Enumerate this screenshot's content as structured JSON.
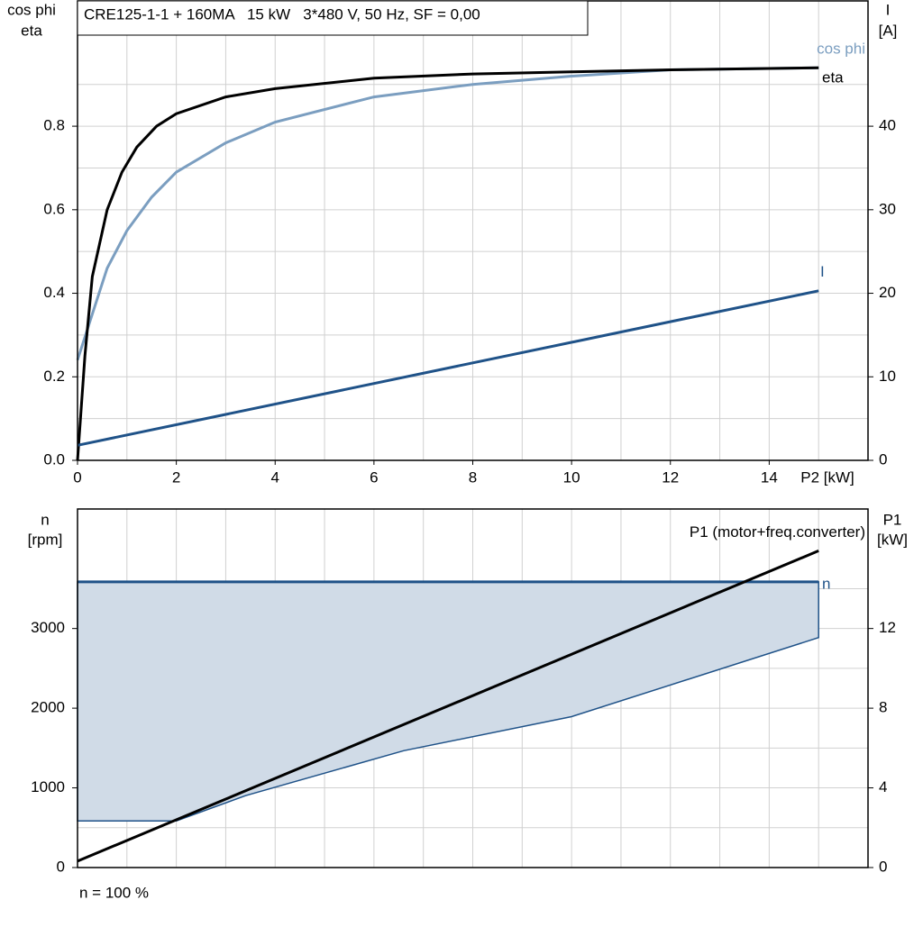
{
  "chart_data": [
    {
      "type": "line",
      "title": "CRE125-1-1 + 160MA   15 kW   3*480 V, 50 Hz, SF = 0,00",
      "ylabel": [
        "cos phi",
        "eta"
      ],
      "y2label": [
        "I",
        "[A]"
      ],
      "xlabel": "P2 [kW]",
      "xlim": [
        0,
        16
      ],
      "xticks": [
        0,
        2,
        4,
        6,
        8,
        10,
        12,
        14
      ],
      "ylim": [
        0,
        1.1
      ],
      "yticks": [
        {
          "value": 0,
          "label": "0.0"
        },
        0.2,
        0.4,
        0.6,
        0.8
      ],
      "y2lim": [
        0,
        55
      ],
      "y2ticks": [
        0,
        10,
        20,
        30,
        40
      ],
      "grid": true,
      "series": [
        {
          "name": "cos phi",
          "type": "line",
          "color": "#7b9ec0",
          "x": [
            0,
            0.3,
            0.6,
            1,
            1.5,
            2,
            3,
            4,
            6,
            8,
            10,
            12,
            15
          ],
          "values": [
            0.24,
            0.35,
            0.46,
            0.55,
            0.63,
            0.69,
            0.76,
            0.81,
            0.87,
            0.9,
            0.92,
            0.935,
            0.94
          ]
        },
        {
          "name": "eta",
          "type": "line",
          "color": "#000000",
          "x": [
            0,
            0.15,
            0.3,
            0.6,
            0.9,
            1.2,
            1.6,
            2,
            3,
            4,
            6,
            8,
            10,
            12,
            15
          ],
          "values": [
            0,
            0.25,
            0.44,
            0.6,
            0.69,
            0.75,
            0.8,
            0.83,
            0.87,
            0.89,
            0.915,
            0.925,
            0.93,
            0.935,
            0.94
          ]
        },
        {
          "name": "I",
          "type": "line",
          "color": "#1f5288",
          "axis": "y2",
          "x": [
            0,
            15
          ],
          "values": [
            1.8,
            20.3
          ]
        }
      ]
    },
    {
      "type": "line",
      "ylabel": [
        "n",
        "[rpm]"
      ],
      "y2label": [
        "P1",
        "[kW]"
      ],
      "xlim": [
        0,
        16
      ],
      "ylim": [
        0,
        4500
      ],
      "yticks": [
        0,
        1000,
        2000,
        3000
      ],
      "y2lim": [
        0,
        18
      ],
      "y2ticks": [
        0,
        4,
        8,
        12
      ],
      "grid": true,
      "note": "n = 100 %",
      "series": [
        {
          "name": "n",
          "type": "band",
          "color": "#1f5288",
          "fill": "#d0dbe7",
          "x": [
            0,
            2,
            3.4,
            6.6,
            10,
            15
          ],
          "values": [
            3585,
            3585,
            3585,
            3585,
            3585,
            3585
          ],
          "lower": [
            586,
            586,
            902,
            1466,
            1894,
            2886
          ]
        },
        {
          "name": "P1 (motor+freq.converter)",
          "type": "line",
          "color": "#000000",
          "axis": "y2",
          "x": [
            0,
            15
          ],
          "values": [
            0.32,
            15.9
          ]
        }
      ]
    }
  ]
}
